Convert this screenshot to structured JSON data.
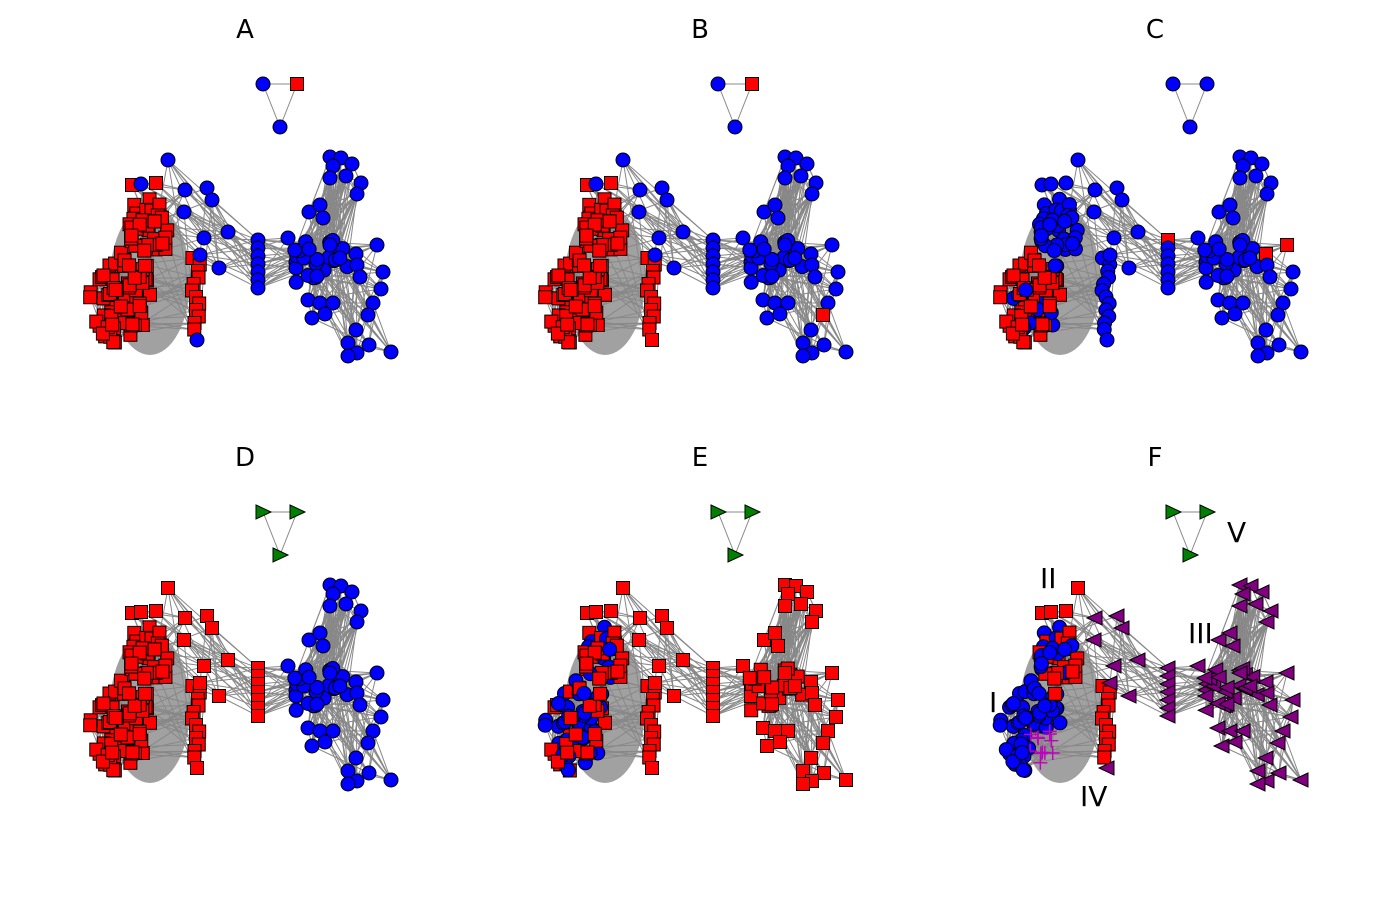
{
  "figure": {
    "panels": [
      {
        "id": "A",
        "title": "A",
        "scheme": "A"
      },
      {
        "id": "B",
        "title": "B",
        "scheme": "B"
      },
      {
        "id": "C",
        "title": "C",
        "scheme": "C"
      },
      {
        "id": "D",
        "title": "D",
        "scheme": "D"
      },
      {
        "id": "E",
        "title": "E",
        "scheme": "E"
      },
      {
        "id": "F",
        "title": "F",
        "scheme": "F"
      }
    ],
    "region_labels": [
      "I",
      "II",
      "III",
      "IV",
      "V"
    ]
  },
  "colors": {
    "red": "#ff0000",
    "blue": "#0000ff",
    "green": "#008000",
    "purple": "#800080",
    "magenta": "#bf00bf",
    "edge": "#888888"
  },
  "legend_shapes": {
    "red": "square",
    "blue": "circle",
    "green": "triangle-right",
    "purple": "triangle-left",
    "magenta": "plus"
  }
}
